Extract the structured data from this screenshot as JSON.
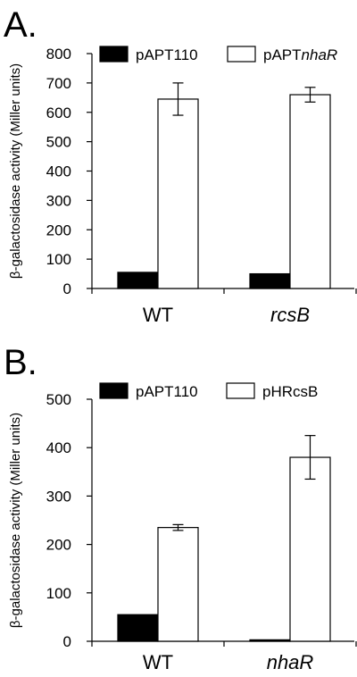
{
  "chart_data": [
    {
      "panel_label": "A.",
      "type": "bar",
      "categories": [
        {
          "label": "WT",
          "italic": false
        },
        {
          "label": "rcsB",
          "italic": true
        }
      ],
      "series": [
        {
          "name": "pAPT110",
          "name_parts": [
            {
              "text": "pAPT110",
              "italic": false
            }
          ],
          "color": "#000000",
          "values": [
            55,
            50
          ],
          "errors": [
            0,
            0
          ]
        },
        {
          "name": "pAPTnhaR",
          "name_parts": [
            {
              "text": "pAPT",
              "italic": false
            },
            {
              "text": "nhaR",
              "italic": true
            }
          ],
          "color": "#ffffff",
          "values": [
            645,
            660
          ],
          "errors": [
            55,
            25
          ]
        }
      ],
      "xlabel": "",
      "ylabel": "β-galactosidase activity (Miller units)",
      "ylim": [
        0,
        800
      ],
      "yticks": [
        0,
        100,
        200,
        300,
        400,
        500,
        600,
        700,
        800
      ],
      "grid": false,
      "legend_position": "top"
    },
    {
      "panel_label": "B.",
      "type": "bar",
      "categories": [
        {
          "label": "WT",
          "italic": false
        },
        {
          "label": "nhaR",
          "italic": true
        }
      ],
      "series": [
        {
          "name": "pAPT110",
          "name_parts": [
            {
              "text": "pAPT110",
              "italic": false
            }
          ],
          "color": "#000000",
          "values": [
            55,
            3
          ],
          "errors": [
            0,
            0
          ]
        },
        {
          "name": "pHRcsB",
          "name_parts": [
            {
              "text": "pHRcsB",
              "italic": false
            }
          ],
          "color": "#ffffff",
          "values": [
            235,
            380
          ],
          "errors": [
            6,
            45
          ]
        }
      ],
      "xlabel": "",
      "ylabel": "β-galactosidase activity (Miller units)",
      "ylim": [
        0,
        500
      ],
      "yticks": [
        0,
        100,
        200,
        300,
        400,
        500
      ],
      "grid": false,
      "legend_position": "top"
    }
  ]
}
